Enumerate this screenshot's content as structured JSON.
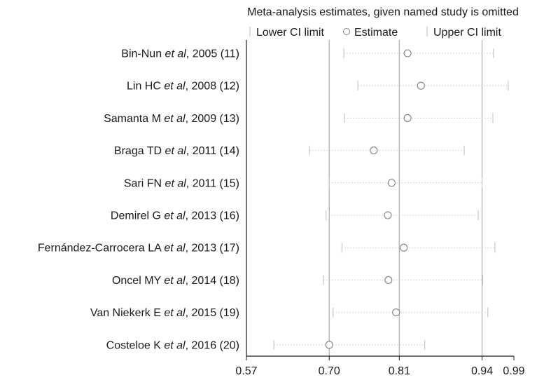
{
  "chart_data": {
    "type": "forest",
    "title": "Meta-analysis estimates, given named study is omitted",
    "legend": {
      "placement": "top",
      "items": [
        {
          "marker": "tick",
          "label": "Lower CI limit"
        },
        {
          "marker": "circle",
          "label": "Estimate"
        },
        {
          "marker": "tick",
          "label": "Upper CI limit"
        }
      ]
    },
    "xlim": [
      0.57,
      0.99
    ],
    "x_ticks": [
      {
        "value": 0.57,
        "label": "0.57"
      },
      {
        "value": 0.7,
        "label": "0.70"
      },
      {
        "value": 0.81,
        "label": "0.81"
      },
      {
        "value": 0.94,
        "label": "0.94"
      },
      {
        "value": 0.99,
        "label": "0.99"
      }
    ],
    "reference_lines": [
      0.7,
      0.81,
      0.94
    ],
    "studies": [
      {
        "prefix": "Bin-Nun ",
        "etal": "et al",
        "suffix": ", 2005 (11)",
        "lower": 0.723,
        "estimate": 0.823,
        "upper": 0.958
      },
      {
        "prefix": "Lin HC ",
        "etal": "et al",
        "suffix": ", 2008 (12)",
        "lower": 0.745,
        "estimate": 0.844,
        "upper": 0.981
      },
      {
        "prefix": "Samanta M ",
        "etal": "et al",
        "suffix": ", 2009 (13)",
        "lower": 0.724,
        "estimate": 0.823,
        "upper": 0.957
      },
      {
        "prefix": "Braga TD ",
        "etal": "et al",
        "suffix": ", 2011 (14)",
        "lower": 0.669,
        "estimate": 0.77,
        "upper": 0.912
      },
      {
        "prefix": "Sari FN ",
        "etal": "et al",
        "suffix": ", 2011 (15)",
        "lower": 0.7,
        "estimate": 0.798,
        "upper": 0.94
      },
      {
        "prefix": "Demirel G ",
        "etal": "et al",
        "suffix": ", 2013 (16)",
        "lower": 0.695,
        "estimate": 0.792,
        "upper": 0.934
      },
      {
        "prefix": "Fernández-Carrocera LA ",
        "etal": "et al",
        "suffix": ", 2013 (17)",
        "lower": 0.72,
        "estimate": 0.817,
        "upper": 0.96
      },
      {
        "prefix": "Oncel MY ",
        "etal": "et al",
        "suffix": ", 2014 (18)",
        "lower": 0.691,
        "estimate": 0.793,
        "upper": 0.941
      },
      {
        "prefix": "Van Niekerk E ",
        "etal": "et al",
        "suffix": ", 2015 (19)",
        "lower": 0.706,
        "estimate": 0.805,
        "upper": 0.949
      },
      {
        "prefix": "Costeloe K ",
        "etal": "et al",
        "suffix": ", 2016 (20)",
        "lower": 0.613,
        "estimate": 0.7,
        "upper": 0.85
      }
    ],
    "colors": {
      "axis": "#1a1a1a",
      "refline": "#9a9a9a",
      "ci": "#c8c8c8",
      "marker": "#808080",
      "text": "#1a1a1a"
    }
  }
}
